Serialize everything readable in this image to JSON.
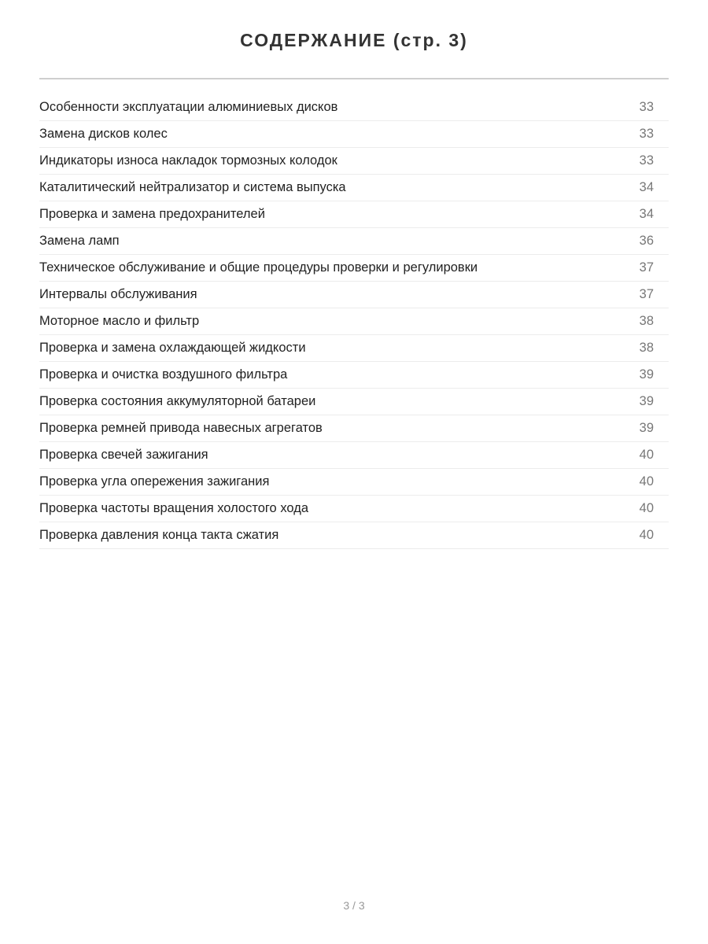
{
  "title": "СОДЕРЖАНИЕ (стр. 3)",
  "entries": [
    {
      "label": "Особенности эксплуатации алюминиевых дисков",
      "page": "33"
    },
    {
      "label": "Замена дисков колес",
      "page": "33"
    },
    {
      "label": "Индикаторы износа накладок тормозных колодок",
      "page": "33"
    },
    {
      "label": "Каталитический нейтрализатор и система выпуска",
      "page": "34"
    },
    {
      "label": "Проверка и замена предохранителей",
      "page": "34"
    },
    {
      "label": "Замена ламп",
      "page": "36"
    },
    {
      "label": "Техническое обслуживание и общие процедуры проверки и регулировки",
      "page": "37"
    },
    {
      "label": "Интервалы обслуживания",
      "page": "37"
    },
    {
      "label": "Моторное масло и фильтр",
      "page": "38"
    },
    {
      "label": "Проверка и замена охлаждающей жидкости",
      "page": "38"
    },
    {
      "label": "Проверка и очистка воздушного фильтра",
      "page": "39"
    },
    {
      "label": "Проверка состояния аккумуляторной батареи",
      "page": "39"
    },
    {
      "label": "Проверка ремней привода навесных агрегатов",
      "page": "39"
    },
    {
      "label": "Проверка свечей зажигания",
      "page": "40"
    },
    {
      "label": "Проверка угла опережения зажигания",
      "page": "40"
    },
    {
      "label": "Проверка частоты вращения холостого хода",
      "page": "40"
    },
    {
      "label": "Проверка давления конца такта сжатия",
      "page": "40"
    }
  ],
  "footer": {
    "page_indicator": "3 / 3"
  }
}
